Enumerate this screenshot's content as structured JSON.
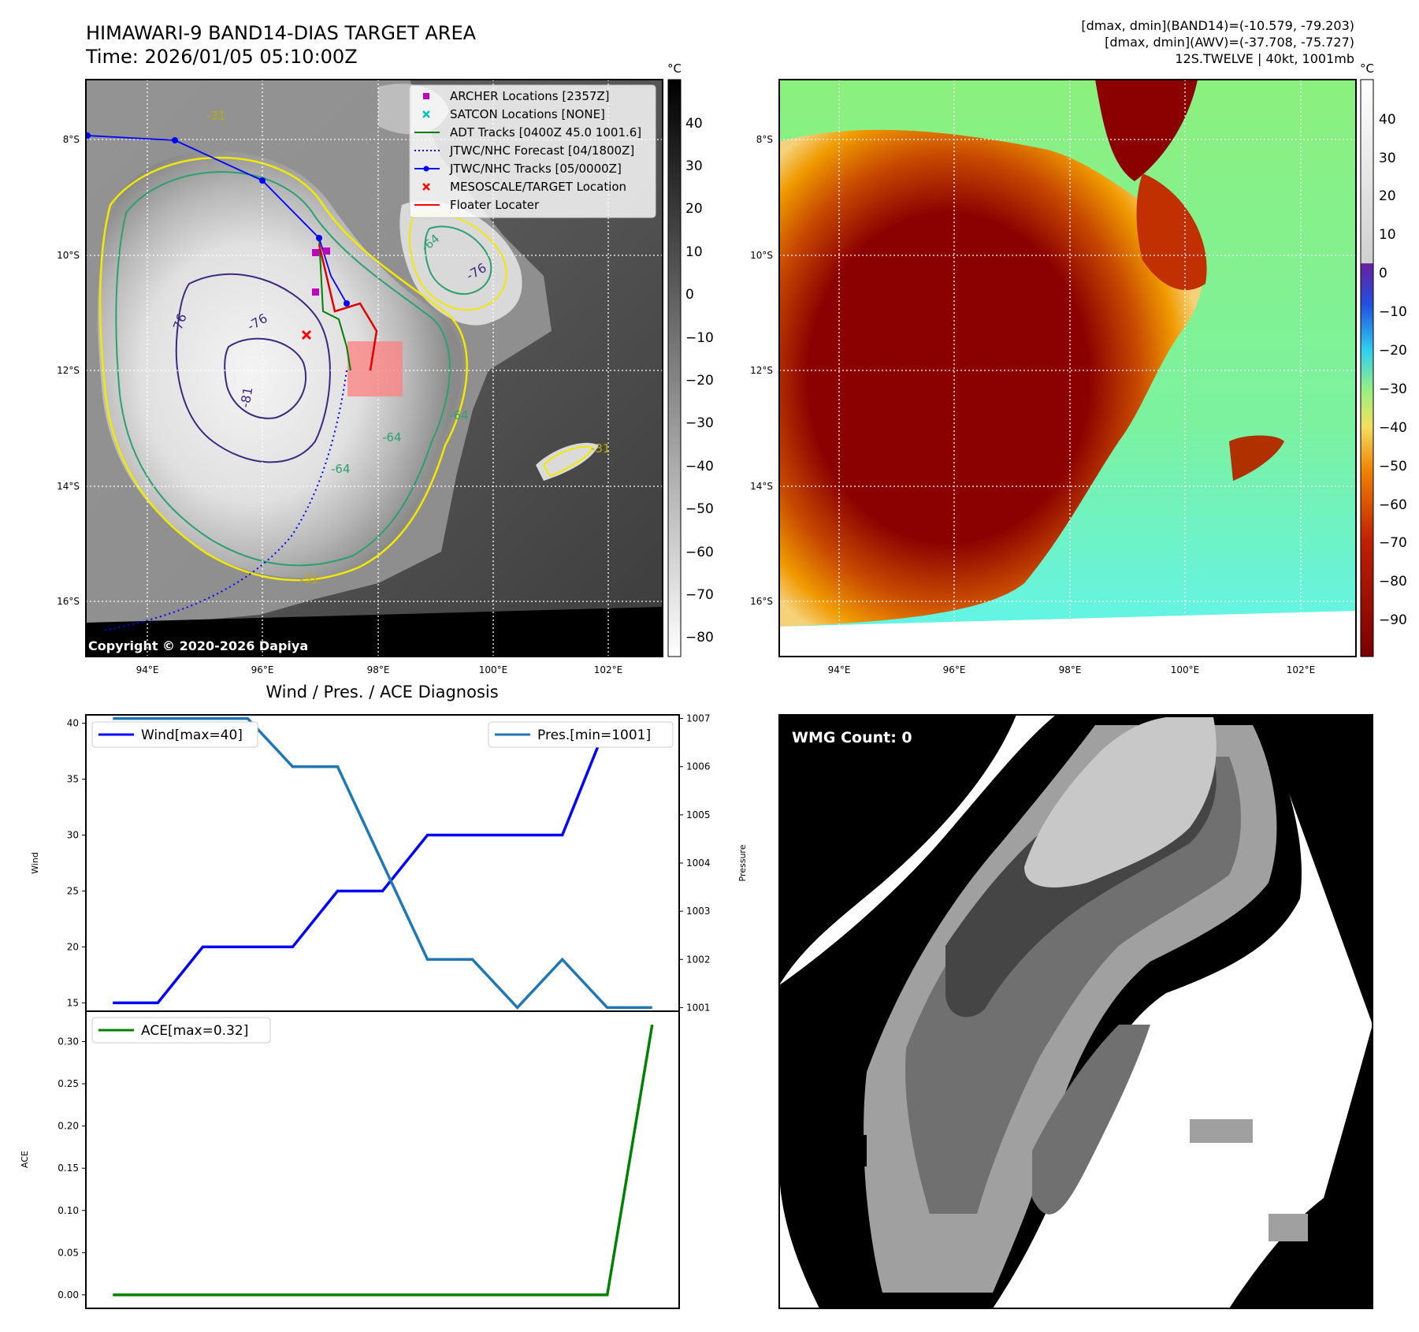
{
  "header": {
    "title_line1": "HIMAWARI-9 BAND14-DIAS TARGET AREA",
    "title_line2": "Time: 2026/01/05 05:10:00Z",
    "info_line1": "[dmax, dmin](BAND14)=(-10.579, -79.203)",
    "info_line2": "[dmax, dmin](AWV)=(-37.708, -75.727)",
    "info_line3": "12S.TWELVE | 40kt, 1001mb"
  },
  "map_left": {
    "lon_ticks": [
      "94°E",
      "96°E",
      "98°E",
      "100°E",
      "102°E"
    ],
    "lat_ticks": [
      "8°S",
      "10°S",
      "12°S",
      "14°S",
      "16°S"
    ],
    "copyright": "Copyright © 2020-2026 Dapiya",
    "contour_labels": [
      "-76",
      "-76",
      "-81",
      "-76",
      "-64",
      "-64",
      "-64",
      "-64",
      "-31",
      "-31",
      "-31"
    ],
    "legend": [
      {
        "label": "ARCHER Locations [2357Z]",
        "color": "#c000c0",
        "marker": "square"
      },
      {
        "label": "SATCON Locations [NONE]",
        "color": "#00bfbf",
        "marker": "x"
      },
      {
        "label": "ADT Tracks [0400Z 45.0 1001.6]",
        "color": "#008000",
        "marker": "line"
      },
      {
        "label": "JTWC/NHC Forecast [04/1800Z]",
        "color": "#0000ff",
        "marker": "dotted"
      },
      {
        "label": "JTWC/NHC Tracks [05/0000Z]",
        "color": "#0000ff",
        "marker": "line-dot"
      },
      {
        "label": "MESOSCALE/TARGET Location",
        "color": "#ff0000",
        "marker": "x"
      },
      {
        "label": "Floater Locater",
        "color": "#ff0000",
        "marker": "line"
      }
    ],
    "colorbar": {
      "unit": "°C",
      "ticks": [
        "40",
        "30",
        "20",
        "10",
        "0",
        "−10",
        "−20",
        "−30",
        "−40",
        "−50",
        "−60",
        "−70",
        "−80"
      ]
    }
  },
  "map_right": {
    "lon_ticks": [
      "94°E",
      "96°E",
      "98°E",
      "100°E",
      "102°E"
    ],
    "lat_ticks": [
      "8°S",
      "10°S",
      "12°S",
      "14°S",
      "16°S"
    ],
    "colorbar": {
      "unit": "°C",
      "ticks": [
        "40",
        "30",
        "20",
        "10",
        "0",
        "−10",
        "−20",
        "−30",
        "−40",
        "−50",
        "−60",
        "−70",
        "−80",
        "−90"
      ]
    }
  },
  "wmg": {
    "label": "WMG Count: 0"
  },
  "chart_data": [
    {
      "type": "line",
      "title": "Wind / Pres. / ACE Diagnosis",
      "x": [
        0,
        1,
        2,
        3,
        4,
        5,
        6,
        7,
        8,
        9,
        10,
        11,
        12
      ],
      "ylabel": "Wind",
      "ylabel2": "Pressure",
      "ylim": [
        14.25,
        40.75
      ],
      "ylim2": [
        1000.925,
        1007.075
      ],
      "yticks": [
        "15",
        "20",
        "25",
        "30",
        "35",
        "40"
      ],
      "yticks2": [
        "1001",
        "1002",
        "1003",
        "1004",
        "1005",
        "1006",
        "1007"
      ],
      "series": [
        {
          "name": "Wind[max=40]",
          "axis": "left",
          "color": "#0000ff",
          "values": [
            15,
            15,
            20,
            20,
            20,
            25,
            25,
            30,
            30,
            30,
            30,
            40,
            40
          ]
        },
        {
          "name": "Pres.[min=1001]",
          "axis": "right",
          "color": "#1f77b4",
          "values": [
            1007,
            1007,
            1007,
            1007,
            1006,
            1006,
            1004,
            1002,
            1002,
            1001,
            1002,
            1001,
            1001
          ]
        }
      ]
    },
    {
      "type": "line",
      "x": [
        0,
        1,
        2,
        3,
        4,
        5,
        6,
        7,
        8,
        9,
        10,
        11,
        12
      ],
      "ylabel": "ACE",
      "ylim": [
        -0.016,
        0.336
      ],
      "yticks": [
        "0.00",
        "0.05",
        "0.10",
        "0.15",
        "0.20",
        "0.25",
        "0.30"
      ],
      "series": [
        {
          "name": "ACE[max=0.32]",
          "color": "#008000",
          "values": [
            0,
            0,
            0,
            0,
            0,
            0,
            0,
            0,
            0,
            0,
            0,
            0,
            0.32
          ]
        }
      ]
    }
  ]
}
